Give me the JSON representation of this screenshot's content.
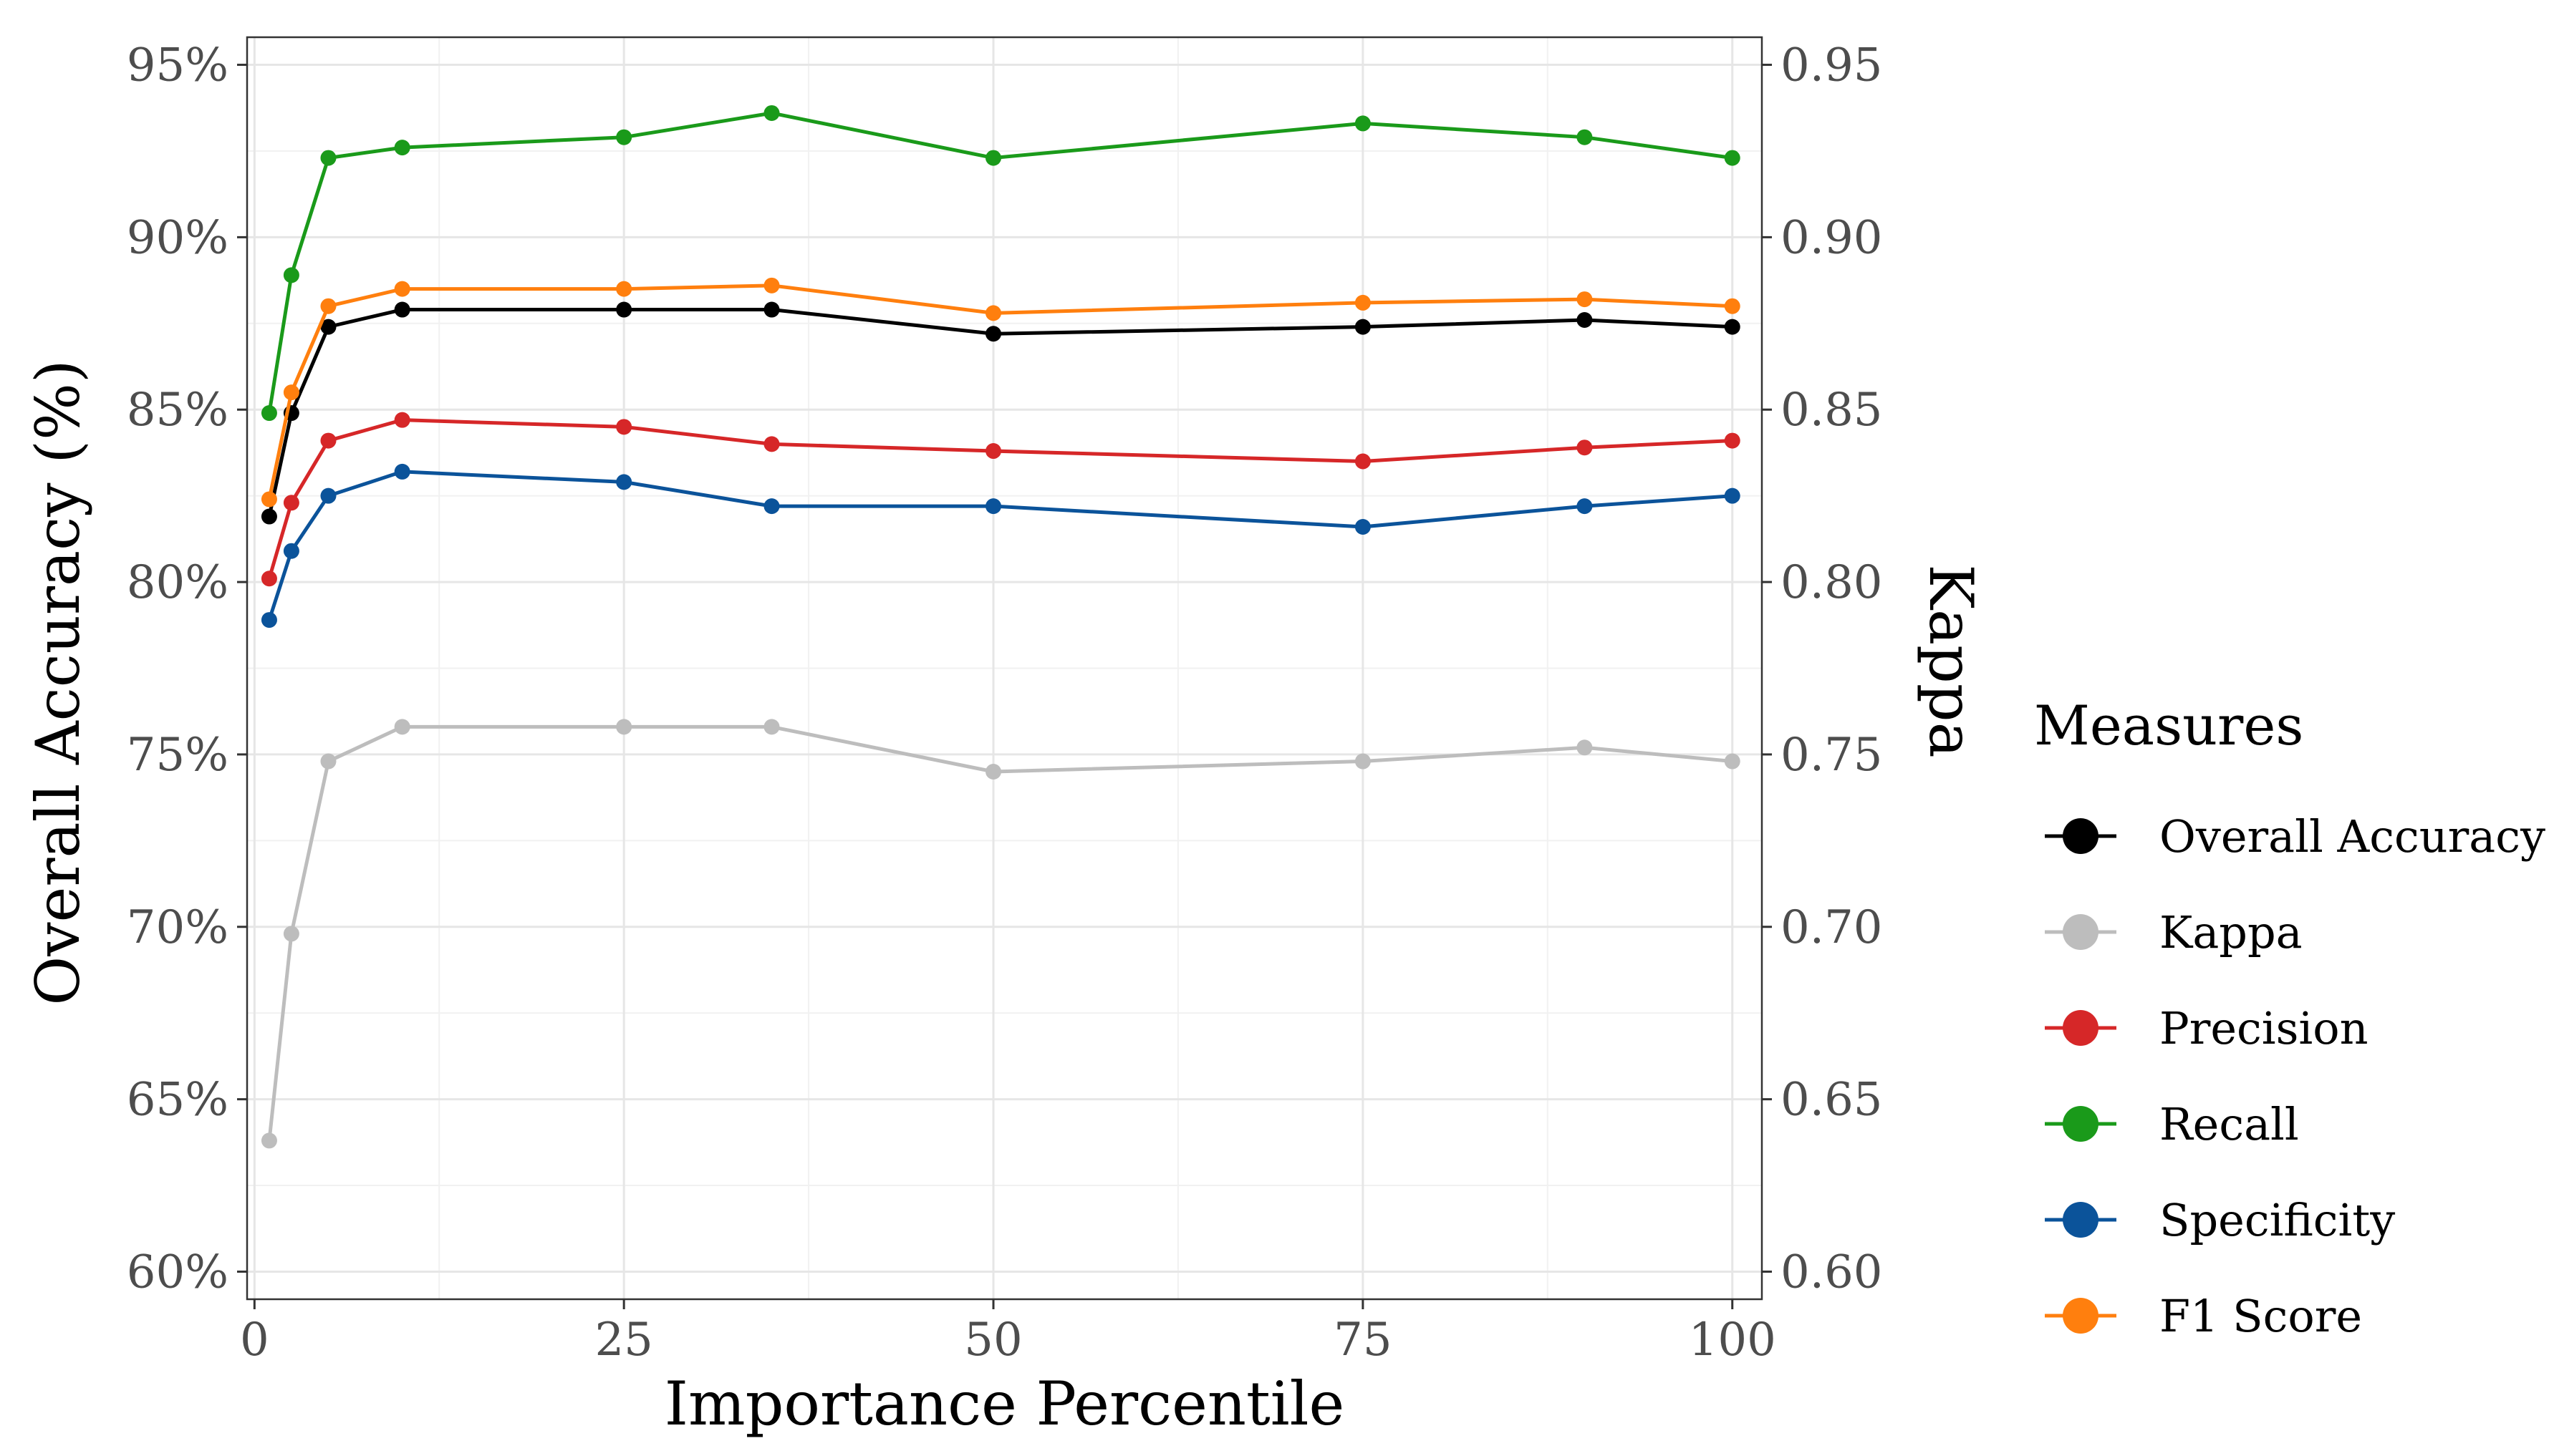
{
  "chart_data": {
    "type": "line",
    "x": [
      1,
      2.5,
      5,
      10,
      25,
      35,
      50,
      75,
      90,
      100
    ],
    "xlabel": "Importance Percentile",
    "ylabel": "Overall Accuracy (%)",
    "y2label": "Kappa",
    "xlim": [
      -0.5,
      102
    ],
    "ylim": [
      59.2,
      95.8
    ],
    "y2lim": [
      0.592,
      0.958
    ],
    "xticks": [
      0,
      25,
      50,
      75,
      100
    ],
    "xtick_labels": [
      "0",
      "25",
      "50",
      "75",
      "100"
    ],
    "yticks": [
      60,
      65,
      70,
      75,
      80,
      85,
      90,
      95
    ],
    "ytick_labels": [
      "60%",
      "65%",
      "70%",
      "75%",
      "80%",
      "85%",
      "90%",
      "95%"
    ],
    "y2ticks": [
      0.6,
      0.65,
      0.7,
      0.75,
      0.8,
      0.85,
      0.9,
      0.95
    ],
    "y2tick_labels": [
      "0.60",
      "0.65",
      "0.70",
      "0.75",
      "0.80",
      "0.85",
      "0.90",
      "0.95"
    ],
    "grid": true,
    "legend_title": "Measures",
    "legend_position": "right",
    "series": [
      {
        "name": "Overall Accuracy",
        "color": "#000000",
        "axis": "left",
        "values": [
          81.9,
          84.9,
          87.4,
          87.9,
          87.9,
          87.9,
          87.2,
          87.4,
          87.6,
          87.4
        ]
      },
      {
        "name": "Kappa",
        "color": "#bdbdbd",
        "axis": "right",
        "values": [
          0.638,
          0.698,
          0.748,
          0.758,
          0.758,
          0.758,
          0.745,
          0.748,
          0.752,
          0.748
        ]
      },
      {
        "name": "Precision",
        "color": "#d62728",
        "axis": "left",
        "values": [
          80.1,
          82.3,
          84.1,
          84.7,
          84.5,
          84.0,
          83.8,
          83.5,
          83.9,
          84.1
        ]
      },
      {
        "name": "Recall",
        "color": "#1a9a1a",
        "axis": "left",
        "values": [
          84.9,
          88.9,
          92.3,
          92.6,
          92.9,
          93.6,
          92.3,
          93.3,
          92.9,
          92.3
        ]
      },
      {
        "name": "Specificity",
        "color": "#0b539a",
        "axis": "left",
        "values": [
          78.9,
          80.9,
          82.5,
          83.2,
          82.9,
          82.2,
          82.2,
          81.6,
          82.2,
          82.5
        ]
      },
      {
        "name": "F1 Score",
        "color": "#ff7f0e",
        "axis": "left",
        "values": [
          82.4,
          85.5,
          88.0,
          88.5,
          88.5,
          88.6,
          87.8,
          88.1,
          88.2,
          88.0
        ]
      }
    ]
  }
}
